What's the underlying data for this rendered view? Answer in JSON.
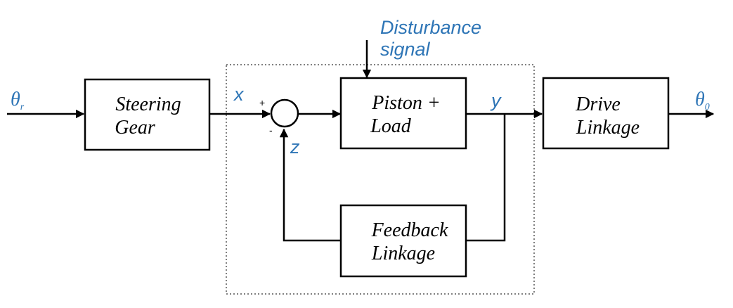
{
  "blocks": {
    "steering_gear": {
      "line1": "Steering",
      "line2": "Gear"
    },
    "piston_load": {
      "line1": "Piston +",
      "line2": "Load"
    },
    "feedback_linkage": {
      "line1": "Feedback",
      "line2": "Linkage"
    },
    "drive_linkage": {
      "line1": "Drive",
      "line2": "Linkage"
    }
  },
  "disturbance": {
    "line1": "Disturbance",
    "line2": "signal"
  },
  "signals": {
    "input_theta": "θ",
    "input_sub": "r",
    "output_theta": "θ",
    "output_sub": "0",
    "x": "x",
    "y": "y",
    "z": "z"
  },
  "summing_junction": {
    "plus": "+",
    "minus": "-"
  },
  "colors": {
    "signal_label": "#2e75b6",
    "lines": "#000000"
  }
}
